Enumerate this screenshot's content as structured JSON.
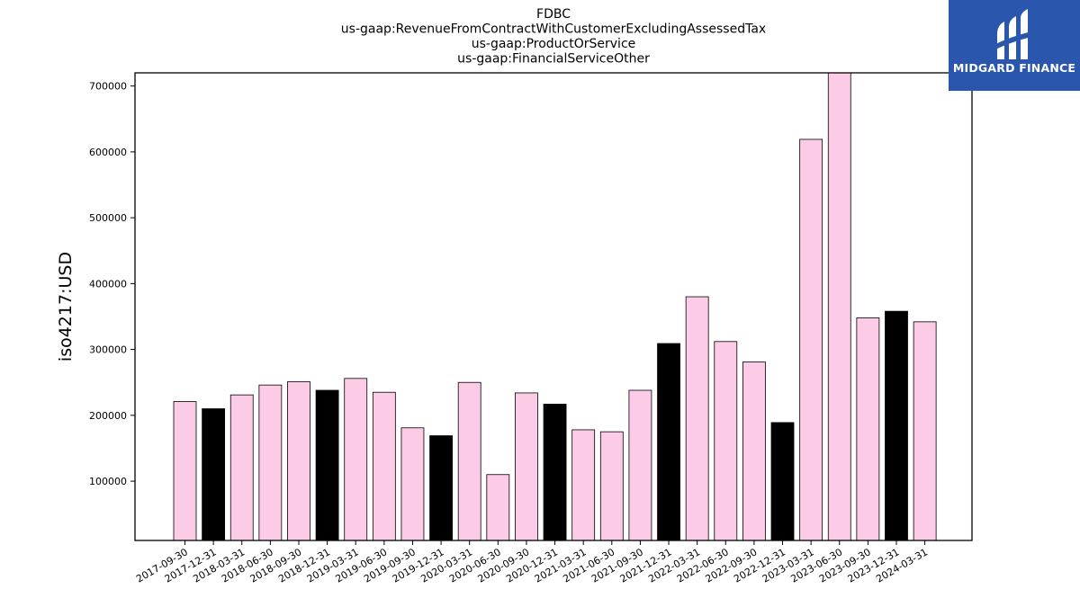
{
  "chart_data": {
    "type": "bar",
    "title_lines": [
      "FDBC",
      "us-gaap:RevenueFromContractWithCustomerExcludingAssessedTax",
      "us-gaap:ProductOrService",
      "us-gaap:FinancialServiceOther"
    ],
    "ylabel": "iso4217:USD",
    "xlabel": "",
    "ylim": [
      10000,
      720000
    ],
    "yticks": [
      100000,
      200000,
      300000,
      400000,
      500000,
      600000,
      700000
    ],
    "categories": [
      "2017-09-30",
      "2017-12-31",
      "2018-03-31",
      "2018-06-30",
      "2018-09-30",
      "2018-12-31",
      "2019-03-31",
      "2019-06-30",
      "2019-09-30",
      "2019-12-31",
      "2020-03-31",
      "2020-06-30",
      "2020-09-30",
      "2020-12-31",
      "2021-03-31",
      "2021-06-30",
      "2021-09-30",
      "2021-12-31",
      "2022-03-31",
      "2022-06-30",
      "2022-09-30",
      "2022-12-31",
      "2023-03-31",
      "2023-06-30",
      "2023-09-30",
      "2023-12-31",
      "2024-03-31"
    ],
    "values": [
      221000,
      210000,
      231000,
      246000,
      251000,
      238000,
      256000,
      235000,
      181000,
      169000,
      250000,
      110000,
      234000,
      217000,
      178000,
      175000,
      238000,
      309000,
      380000,
      312000,
      281000,
      189000,
      619000,
      722000,
      348000,
      358000,
      342000
    ],
    "bar_colors": [
      "#fccce6",
      "#000000",
      "#fccce6",
      "#fccce6",
      "#fccce6",
      "#000000",
      "#fccce6",
      "#fccce6",
      "#fccce6",
      "#000000",
      "#fccce6",
      "#fccce6",
      "#fccce6",
      "#000000",
      "#fccce6",
      "#fccce6",
      "#fccce6",
      "#000000",
      "#fccce6",
      "#fccce6",
      "#fccce6",
      "#000000",
      "#fccce6",
      "#fccce6",
      "#fccce6",
      "#000000",
      "#fccce6"
    ],
    "grid": false,
    "legend": "none"
  },
  "logo": {
    "text": "MIDGARD FINANCE",
    "background": "#2a57ad"
  }
}
